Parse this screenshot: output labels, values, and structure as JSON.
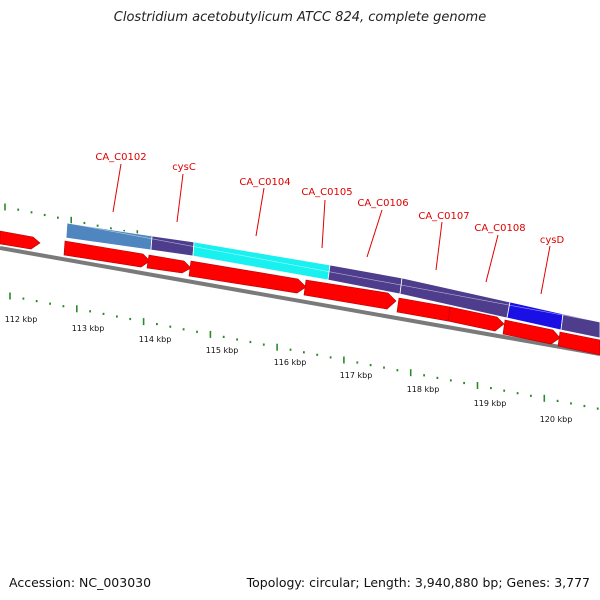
{
  "title": "Clostridium acetobutylicum ATCC 824, complete genome",
  "accession": "Accession: NC_003030",
  "stats": "Topology: circular; Length: 3,940,880 bp; Genes: 3,777",
  "colors": {
    "cds": "#ff0000",
    "feature_purple": "#4d3d8c",
    "feature_steel": "#4f86bf",
    "feature_cyan": "#19f0f0",
    "feature_blue": "#1a10e6",
    "backbone": "#808080",
    "ticks": "#2a8a2a",
    "labels": "#e00000"
  },
  "gene_labels": [
    {
      "text": "CA_C0102"
    },
    {
      "text": "cysC"
    },
    {
      "text": "CA_C0104"
    },
    {
      "text": "CA_C0105"
    },
    {
      "text": "CA_C0106"
    },
    {
      "text": "CA_C0107"
    },
    {
      "text": "CA_C0108"
    },
    {
      "text": "cysD"
    }
  ],
  "scale_labels": [
    "112 kbp",
    "113 kbp",
    "114 kbp",
    "115 kbp",
    "116 kbp",
    "117 kbp",
    "118 kbp",
    "119 kbp",
    "120 kbp"
  ]
}
